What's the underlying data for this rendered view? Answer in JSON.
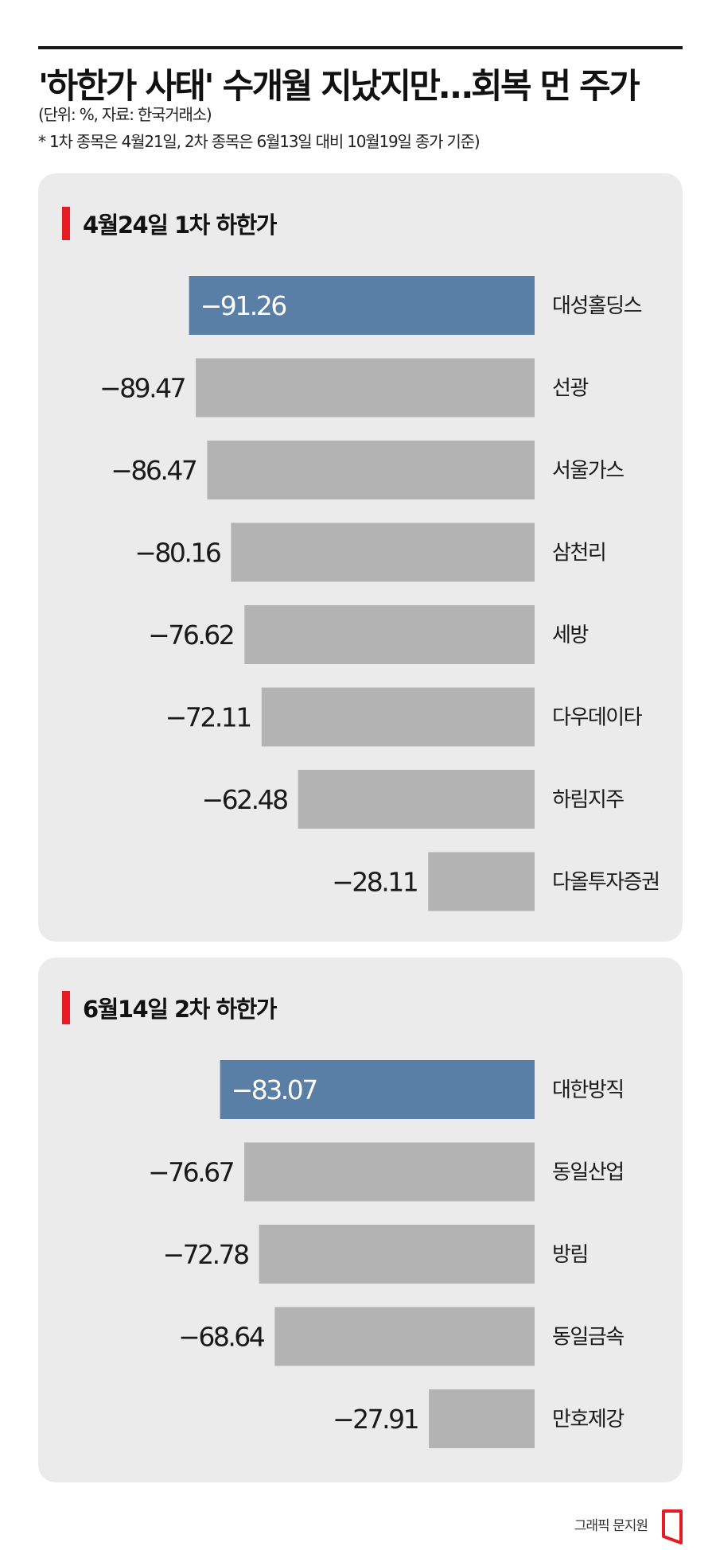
{
  "header": {
    "title": "'하한가 사태' 수개월 지났지만…회복 먼 주가",
    "unit_note": "(단위: %, 자료: 한국거래소)",
    "basis_note": "* 1차 종목은 4월21일, 2차 종목은 6월13일 대비 10월19일 종가 기준)"
  },
  "colors": {
    "highlight_bar": "#5a7fa6",
    "default_bar": "#b3b3b3",
    "panel_bg": "#ebebeb",
    "marker": "#e51c23"
  },
  "chart_data": [
    {
      "type": "bar",
      "orientation": "horizontal",
      "title": "4월24일 1차 하한가",
      "categories": [
        "대성홀딩스",
        "선광",
        "서울가스",
        "삼천리",
        "세방",
        "다우데이타",
        "하림지주",
        "다올투자증권"
      ],
      "values": [
        -91.26,
        -89.47,
        -86.47,
        -80.16,
        -76.62,
        -72.11,
        -62.48,
        -28.11
      ],
      "value_labels": [
        "−91.26",
        "−89.47",
        "−86.47",
        "−80.16",
        "−76.62",
        "−72.11",
        "−62.48",
        "−28.11"
      ],
      "highlight_index": 0,
      "xlim": [
        -100,
        0
      ]
    },
    {
      "type": "bar",
      "orientation": "horizontal",
      "title": "6월14일 2차 하한가",
      "categories": [
        "대한방직",
        "동일산업",
        "방림",
        "동일금속",
        "만호제강"
      ],
      "values": [
        -83.07,
        -76.67,
        -72.78,
        -68.64,
        -27.91
      ],
      "value_labels": [
        "−83.07",
        "−76.67",
        "−72.78",
        "−68.64",
        "−27.91"
      ],
      "highlight_index": 0,
      "xlim": [
        -100,
        0
      ]
    }
  ],
  "footer": {
    "credit": "그래픽 문지원",
    "logo_icon": "publisher-logo-icon"
  }
}
